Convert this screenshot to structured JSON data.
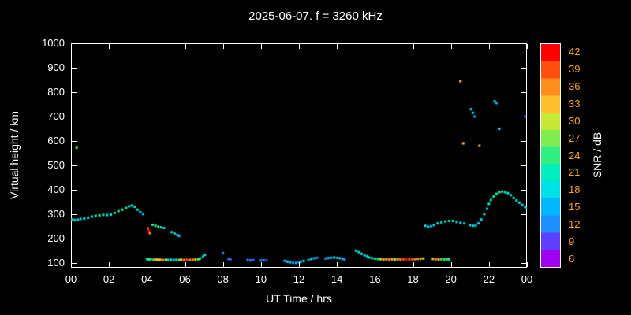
{
  "colors": {
    "background": "#000000",
    "axis": "#ffffff",
    "text": "#ffffff",
    "colorbar_tick_text": "#ffa020"
  },
  "chart_data": {
    "type": "scatter",
    "title": "2025-06-07. f = 3260 kHz",
    "xlabel": "UT Time / hrs",
    "ylabel": "Virtual height / km",
    "xlim": [
      0,
      24
    ],
    "ylim": [
      80,
      1000
    ],
    "grid": false,
    "legend": "none",
    "xticks": [
      0,
      2,
      4,
      6,
      8,
      10,
      12,
      14,
      16,
      18,
      20,
      22,
      24
    ],
    "xtick_labels": [
      "00",
      "02",
      "04",
      "06",
      "08",
      "10",
      "12",
      "14",
      "16",
      "18",
      "20",
      "22",
      "00"
    ],
    "yticks": [
      100,
      200,
      300,
      400,
      500,
      600,
      700,
      800,
      900,
      1000
    ],
    "ytick_labels": [
      "100",
      "200",
      "300",
      "400",
      "500",
      "600",
      "700",
      "800",
      "900",
      "1000"
    ],
    "colorbar": {
      "label": "SNR / dB",
      "min": 4.5,
      "max": 43.5,
      "ticks": [
        42,
        39,
        36,
        33,
        30,
        27,
        24,
        21,
        18,
        15,
        12,
        9,
        6
      ]
    },
    "colormap": [
      {
        "value": 6,
        "color": "#a000f0"
      },
      {
        "value": 9,
        "color": "#6040ff"
      },
      {
        "value": 12,
        "color": "#2090ff"
      },
      {
        "value": 15,
        "color": "#00b8ff"
      },
      {
        "value": 18,
        "color": "#00e0e8"
      },
      {
        "value": 21,
        "color": "#00eec0"
      },
      {
        "value": 24,
        "color": "#30ee80"
      },
      {
        "value": 27,
        "color": "#80ee50"
      },
      {
        "value": 30,
        "color": "#c8e838"
      },
      {
        "value": 33,
        "color": "#ffc030"
      },
      {
        "value": 36,
        "color": "#ff9020"
      },
      {
        "value": 39,
        "color": "#ff5010"
      },
      {
        "value": 42,
        "color": "#ff0000"
      }
    ],
    "points_format": [
      "ut_hours",
      "virtual_height_km",
      "snr_db"
    ],
    "points": [
      [
        0.05,
        278,
        21
      ],
      [
        0.2,
        276,
        18
      ],
      [
        0.3,
        572,
        24
      ],
      [
        0.35,
        277,
        18
      ],
      [
        0.5,
        280,
        18
      ],
      [
        0.7,
        282,
        18
      ],
      [
        0.9,
        285,
        21
      ],
      [
        1.1,
        290,
        18
      ],
      [
        1.3,
        293,
        21
      ],
      [
        1.5,
        295,
        24
      ],
      [
        1.7,
        297,
        21
      ],
      [
        1.9,
        296,
        18
      ],
      [
        2.1,
        298,
        21
      ],
      [
        2.3,
        305,
        21
      ],
      [
        2.5,
        312,
        24
      ],
      [
        2.7,
        318,
        21
      ],
      [
        2.9,
        325,
        24
      ],
      [
        3.05,
        332,
        21
      ],
      [
        3.2,
        335,
        21
      ],
      [
        3.35,
        330,
        18
      ],
      [
        3.5,
        318,
        18
      ],
      [
        3.65,
        308,
        18
      ],
      [
        3.8,
        300,
        15
      ],
      [
        4.05,
        242,
        39
      ],
      [
        4.1,
        232,
        42
      ],
      [
        4.15,
        222,
        36
      ],
      [
        4.3,
        256,
        24
      ],
      [
        4.45,
        252,
        21
      ],
      [
        4.6,
        248,
        24
      ],
      [
        4.75,
        246,
        21
      ],
      [
        4.9,
        243,
        18
      ],
      [
        5.3,
        226,
        18
      ],
      [
        5.45,
        220,
        21
      ],
      [
        5.6,
        214,
        18
      ],
      [
        5.7,
        210,
        15
      ],
      [
        4.0,
        116,
        24
      ],
      [
        4.1,
        114,
        21
      ],
      [
        4.2,
        115,
        24
      ],
      [
        4.35,
        113,
        27
      ],
      [
        4.5,
        114,
        33
      ],
      [
        4.6,
        112,
        30
      ],
      [
        4.7,
        113,
        33
      ],
      [
        4.85,
        112,
        36
      ],
      [
        5.0,
        113,
        30
      ],
      [
        5.1,
        112,
        21
      ],
      [
        5.25,
        113,
        18
      ],
      [
        5.4,
        112,
        18
      ],
      [
        5.55,
        113,
        21
      ],
      [
        5.7,
        112,
        27
      ],
      [
        5.8,
        113,
        33
      ],
      [
        5.95,
        112,
        36
      ],
      [
        6.1,
        113,
        39
      ],
      [
        6.25,
        112,
        36
      ],
      [
        6.4,
        113,
        36
      ],
      [
        6.55,
        114,
        33
      ],
      [
        6.7,
        115,
        27
      ],
      [
        6.8,
        118,
        21
      ],
      [
        6.95,
        126,
        18
      ],
      [
        7.05,
        133,
        18
      ],
      [
        8.0,
        140,
        12
      ],
      [
        8.3,
        116,
        12
      ],
      [
        8.4,
        114,
        9
      ],
      [
        9.3,
        112,
        12
      ],
      [
        9.45,
        110,
        12
      ],
      [
        9.6,
        112,
        9
      ],
      [
        10.0,
        110,
        12
      ],
      [
        10.15,
        111,
        12
      ],
      [
        10.3,
        110,
        9
      ],
      [
        11.25,
        108,
        15
      ],
      [
        11.4,
        105,
        18
      ],
      [
        11.55,
        102,
        15
      ],
      [
        11.7,
        100,
        12
      ],
      [
        11.85,
        100,
        15
      ],
      [
        12.0,
        102,
        12
      ],
      [
        12.1,
        105,
        15
      ],
      [
        12.25,
        108,
        18
      ],
      [
        12.5,
        112,
        15
      ],
      [
        12.65,
        116,
        18
      ],
      [
        12.8,
        119,
        15
      ],
      [
        12.95,
        121,
        12
      ],
      [
        13.4,
        118,
        12
      ],
      [
        13.55,
        120,
        15
      ],
      [
        13.7,
        121,
        15
      ],
      [
        13.85,
        122,
        18
      ],
      [
        14.0,
        121,
        15
      ],
      [
        14.15,
        119,
        18
      ],
      [
        14.3,
        116,
        15
      ],
      [
        14.4,
        114,
        12
      ],
      [
        15.0,
        150,
        18
      ],
      [
        15.15,
        144,
        18
      ],
      [
        15.3,
        137,
        21
      ],
      [
        15.45,
        131,
        18
      ],
      [
        15.6,
        127,
        18
      ],
      [
        15.7,
        122,
        21
      ],
      [
        15.85,
        119,
        18
      ],
      [
        16.0,
        117,
        21
      ],
      [
        16.15,
        116,
        24
      ],
      [
        16.3,
        115,
        30
      ],
      [
        16.45,
        114,
        33
      ],
      [
        16.6,
        115,
        33
      ],
      [
        16.75,
        114,
        36
      ],
      [
        16.9,
        115,
        33
      ],
      [
        17.05,
        114,
        30
      ],
      [
        17.2,
        115,
        33
      ],
      [
        17.35,
        114,
        36
      ],
      [
        17.5,
        115,
        39
      ],
      [
        17.65,
        114,
        42
      ],
      [
        17.8,
        115,
        39
      ],
      [
        17.95,
        114,
        39
      ],
      [
        18.1,
        115,
        36
      ],
      [
        18.25,
        116,
        36
      ],
      [
        18.4,
        117,
        33
      ],
      [
        18.55,
        118,
        30
      ],
      [
        19.05,
        116,
        33
      ],
      [
        19.2,
        115,
        36
      ],
      [
        19.35,
        114,
        33
      ],
      [
        19.5,
        115,
        27
      ],
      [
        19.65,
        114,
        24
      ],
      [
        19.8,
        115,
        24
      ],
      [
        19.9,
        114,
        21
      ],
      [
        18.65,
        252,
        18
      ],
      [
        18.8,
        248,
        18
      ],
      [
        18.95,
        250,
        15
      ],
      [
        19.1,
        255,
        18
      ],
      [
        19.3,
        262,
        18
      ],
      [
        19.5,
        266,
        21
      ],
      [
        19.7,
        270,
        18
      ],
      [
        19.9,
        272,
        18
      ],
      [
        20.1,
        272,
        21
      ],
      [
        20.3,
        268,
        18
      ],
      [
        20.5,
        264,
        18
      ],
      [
        20.7,
        262,
        15
      ],
      [
        21.0,
        255,
        18
      ],
      [
        21.15,
        252,
        18
      ],
      [
        21.3,
        253,
        18
      ],
      [
        21.45,
        262,
        18
      ],
      [
        21.6,
        278,
        18
      ],
      [
        21.75,
        300,
        21
      ],
      [
        21.9,
        322,
        18
      ],
      [
        22.0,
        342,
        21
      ],
      [
        22.1,
        358,
        21
      ],
      [
        22.25,
        372,
        21
      ],
      [
        22.4,
        383,
        24
      ],
      [
        22.55,
        390,
        21
      ],
      [
        22.7,
        392,
        24
      ],
      [
        22.85,
        390,
        21
      ],
      [
        23.0,
        386,
        21
      ],
      [
        23.15,
        378,
        18
      ],
      [
        23.3,
        366,
        21
      ],
      [
        23.45,
        356,
        18
      ],
      [
        23.6,
        347,
        18
      ],
      [
        23.75,
        338,
        18
      ],
      [
        23.9,
        330,
        15
      ],
      [
        24.0,
        324,
        18
      ],
      [
        20.5,
        845,
        33
      ],
      [
        20.65,
        590,
        33
      ],
      [
        21.05,
        730,
        18
      ],
      [
        21.15,
        715,
        18
      ],
      [
        21.25,
        700,
        15
      ],
      [
        21.5,
        580,
        33
      ],
      [
        22.3,
        762,
        18
      ],
      [
        22.4,
        755,
        15
      ],
      [
        22.55,
        650,
        18
      ],
      [
        23.9,
        700,
        9
      ]
    ]
  }
}
